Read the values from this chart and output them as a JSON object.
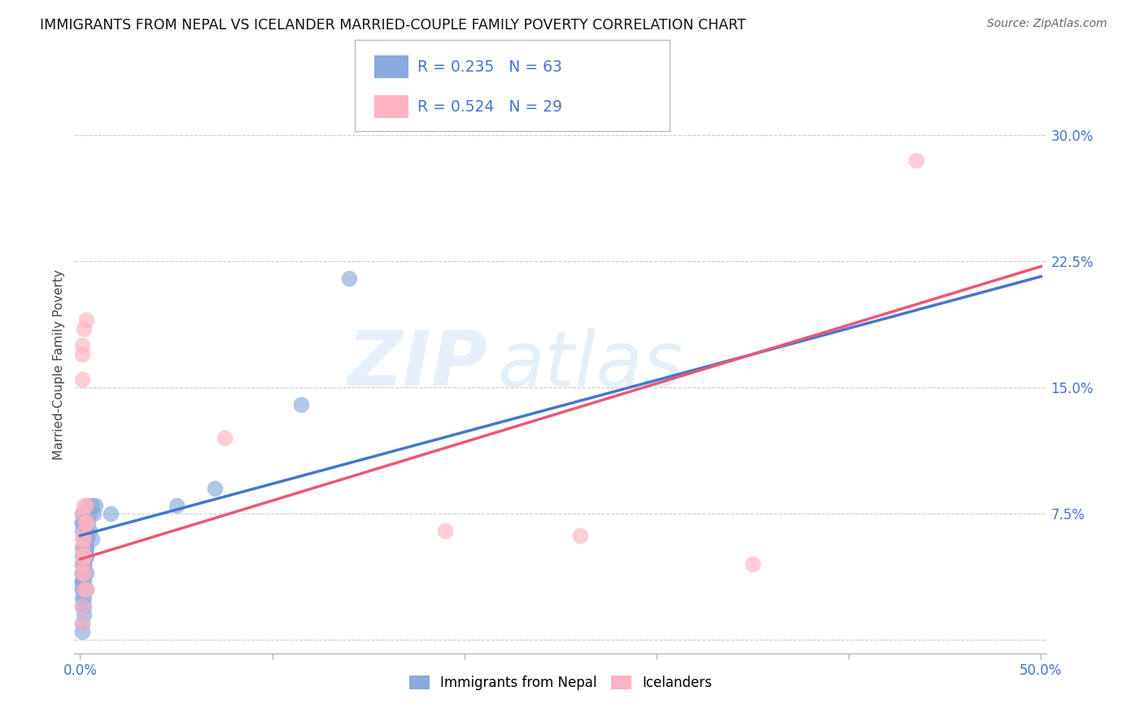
{
  "title": "IMMIGRANTS FROM NEPAL VS ICELANDER MARRIED-COUPLE FAMILY POVERTY CORRELATION CHART",
  "source": "Source: ZipAtlas.com",
  "ylabel": "Married-Couple Family Poverty",
  "xlim": [
    -0.003,
    0.503
  ],
  "ylim": [
    -0.008,
    0.335
  ],
  "xticks": [
    0.0,
    0.1,
    0.2,
    0.3,
    0.4,
    0.5
  ],
  "xticklabels_show": [
    "0.0%",
    "",
    "",
    "",
    "",
    "50.0%"
  ],
  "yticks": [
    0.0,
    0.075,
    0.15,
    0.225,
    0.3
  ],
  "yticklabels": [
    "",
    "7.5%",
    "15.0%",
    "22.5%",
    "30.0%"
  ],
  "color_blue": "#88AADD",
  "color_pink": "#FFB3C1",
  "color_line_blue": "#4477CC",
  "color_line_pink": "#EE5577",
  "color_legend_text": "#4477CC",
  "watermark_zip": "ZIP",
  "watermark_atlas": "atlas",
  "blue_x": [
    0.001,
    0.002,
    0.001,
    0.002,
    0.003,
    0.001,
    0.002,
    0.003,
    0.001,
    0.002,
    0.001,
    0.003,
    0.002,
    0.001,
    0.003,
    0.002,
    0.001,
    0.002,
    0.003,
    0.001,
    0.002,
    0.001,
    0.003,
    0.002,
    0.001,
    0.002,
    0.003,
    0.001,
    0.002,
    0.001,
    0.003,
    0.002,
    0.001,
    0.002,
    0.003,
    0.001,
    0.002,
    0.001,
    0.003,
    0.002,
    0.001,
    0.003,
    0.002,
    0.001,
    0.002,
    0.001,
    0.003,
    0.002,
    0.001,
    0.002,
    0.004,
    0.005,
    0.004,
    0.005,
    0.006,
    0.006,
    0.007,
    0.008,
    0.016,
    0.05,
    0.07,
    0.115,
    0.14
  ],
  "blue_y": [
    0.055,
    0.045,
    0.035,
    0.06,
    0.05,
    0.07,
    0.055,
    0.065,
    0.075,
    0.05,
    0.04,
    0.06,
    0.05,
    0.03,
    0.055,
    0.045,
    0.025,
    0.05,
    0.065,
    0.04,
    0.035,
    0.045,
    0.06,
    0.055,
    0.07,
    0.05,
    0.04,
    0.065,
    0.055,
    0.045,
    0.06,
    0.05,
    0.03,
    0.04,
    0.06,
    0.05,
    0.045,
    0.035,
    0.055,
    0.045,
    0.035,
    0.05,
    0.025,
    0.02,
    0.015,
    0.01,
    0.03,
    0.04,
    0.005,
    0.02,
    0.07,
    0.075,
    0.08,
    0.065,
    0.08,
    0.06,
    0.075,
    0.08,
    0.075,
    0.08,
    0.09,
    0.14,
    0.215
  ],
  "pink_x": [
    0.001,
    0.002,
    0.001,
    0.003,
    0.002,
    0.001,
    0.002,
    0.001,
    0.003,
    0.001,
    0.002,
    0.001,
    0.002,
    0.003,
    0.001,
    0.002,
    0.003,
    0.002,
    0.001,
    0.002,
    0.001,
    0.003,
    0.002,
    0.075,
    0.19,
    0.26,
    0.35,
    0.435,
    0.001
  ],
  "pink_y": [
    0.175,
    0.185,
    0.155,
    0.19,
    0.065,
    0.075,
    0.08,
    0.055,
    0.07,
    0.045,
    0.06,
    0.04,
    0.05,
    0.07,
    0.02,
    0.05,
    0.08,
    0.04,
    0.06,
    0.03,
    0.01,
    0.03,
    0.05,
    0.12,
    0.065,
    0.062,
    0.045,
    0.285,
    0.17
  ],
  "line_blue_x0": 0.0,
  "line_blue_y0": 0.062,
  "line_blue_x1": 0.5,
  "line_blue_y1": 0.216,
  "line_pink_x0": 0.0,
  "line_pink_y0": 0.048,
  "line_pink_x1": 0.5,
  "line_pink_y1": 0.222
}
